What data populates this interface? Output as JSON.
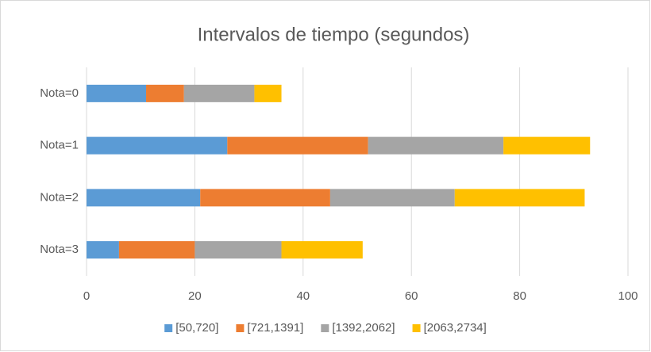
{
  "chart_data": {
    "type": "stacked-bar-horizontal",
    "title": "Intervalos de tiempo (segundos)",
    "categories": [
      "Nota=0",
      "Nota=1",
      "Nota=2",
      "Nota=3"
    ],
    "series": [
      {
        "name": "[50,720]",
        "color": "#5b9bd5",
        "values": [
          11,
          26,
          21,
          6
        ]
      },
      {
        "name": "[721,1391]",
        "color": "#ed7d31",
        "values": [
          7,
          26,
          24,
          14
        ]
      },
      {
        "name": "[1392,2062]",
        "color": "#a5a5a5",
        "values": [
          13,
          25,
          23,
          16
        ]
      },
      {
        "name": "[2063,2734]",
        "color": "#ffc000",
        "values": [
          5,
          16,
          24,
          15
        ]
      }
    ],
    "xlim": [
      0,
      100
    ],
    "xticks": [
      0,
      20,
      40,
      60,
      80,
      100
    ],
    "grid": true,
    "legend": "bottom"
  }
}
